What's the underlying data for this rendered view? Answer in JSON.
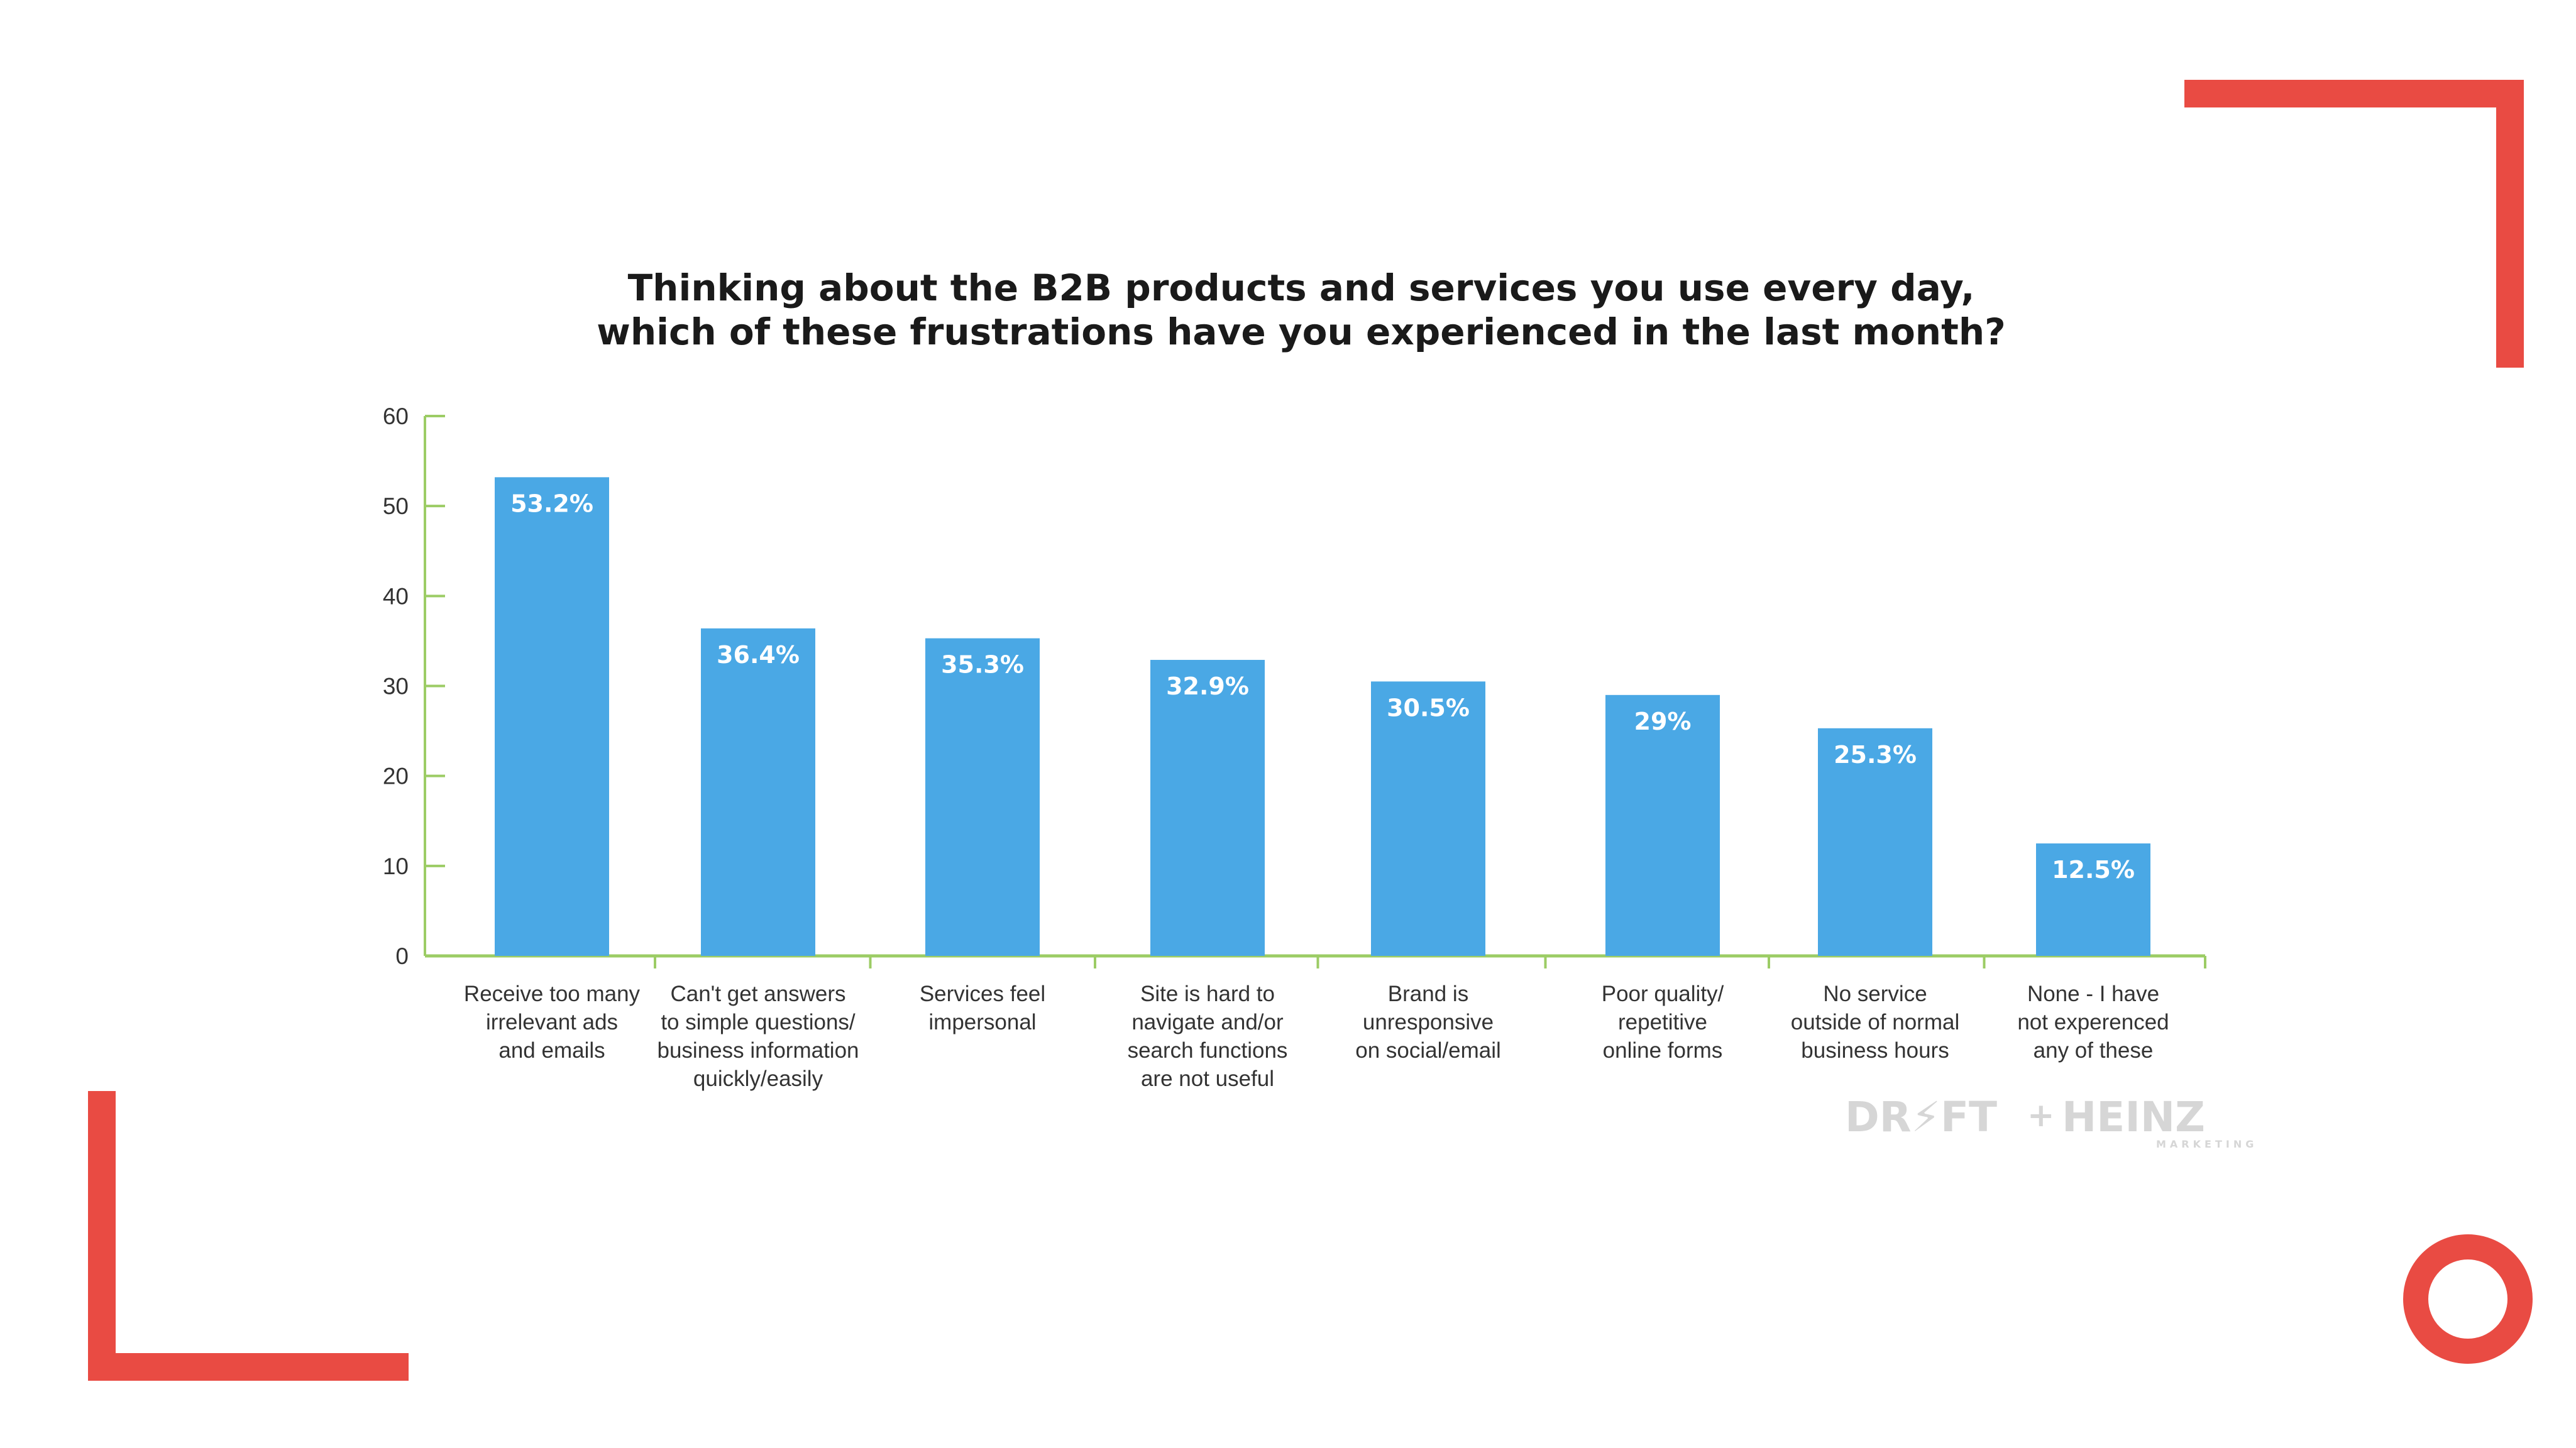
{
  "chart_data": {
    "type": "bar",
    "title": [
      "Thinking about the B2B products and services you use every day,",
      "which of these frustrations have you experienced in the last month?"
    ],
    "categories": [
      [
        "Receive too many",
        "irrelevant ads",
        "and emails"
      ],
      [
        "Can't get answers",
        "to simple questions/",
        "business information",
        "quickly/easily"
      ],
      [
        "Services feel",
        "impersonal"
      ],
      [
        "Site is hard to",
        "navigate and/or",
        "search functions",
        "are not useful"
      ],
      [
        "Brand is",
        "unresponsive",
        "on social/email"
      ],
      [
        "Poor quality/",
        "repetitive",
        "online forms"
      ],
      [
        "No service",
        "outside of normal",
        "business hours"
      ],
      [
        "None - I have",
        "not experenced",
        "any of these"
      ]
    ],
    "values": [
      53.2,
      36.4,
      35.3,
      32.9,
      30.5,
      29,
      25.3,
      12.5
    ],
    "data_labels": [
      "53.2%",
      "36.4%",
      "35.3%",
      "32.9%",
      "30.5%",
      "29%",
      "25.3%",
      "12.5%"
    ],
    "xlabel": "",
    "ylabel": "",
    "ylim": [
      0,
      60
    ],
    "yticks": [
      "0",
      "10",
      "20",
      "30",
      "40",
      "50",
      "60"
    ],
    "grid": false,
    "colors": {
      "bar": "#4aa8e5",
      "axis": "#9ccc65",
      "accent": "#e94b43",
      "logo": "#d6d6d6"
    }
  },
  "logo": {
    "left": "DR⚡FT",
    "plus": "+",
    "right": "HEINZ",
    "sub": "MARKETING"
  },
  "decorations": {
    "corner_icon": "corner-bracket-icon",
    "circle_icon": "ring-icon"
  }
}
